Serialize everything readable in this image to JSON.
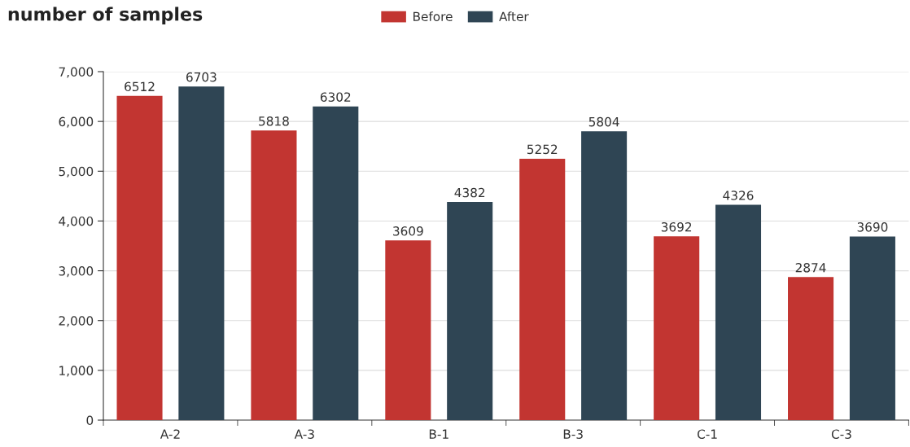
{
  "chart_data": {
    "type": "bar",
    "title": "number of samples",
    "categories": [
      "A-2",
      "A-3",
      "B-1",
      "B-3",
      "C-1",
      "C-3"
    ],
    "series": [
      {
        "name": "Before",
        "color": "#c23531",
        "values": [
          6512,
          5818,
          3609,
          5252,
          3692,
          2874
        ]
      },
      {
        "name": "After",
        "color": "#2f4554",
        "values": [
          6703,
          6302,
          4382,
          5804,
          4326,
          3690
        ]
      }
    ],
    "ylim": [
      0,
      7000
    ],
    "yticks": [
      {
        "value": 0,
        "label": "0"
      },
      {
        "value": 1000,
        "label": "1,000"
      },
      {
        "value": 2000,
        "label": "2,000"
      },
      {
        "value": 3000,
        "label": "3,000"
      },
      {
        "value": 4000,
        "label": "4,000"
      },
      {
        "value": 5000,
        "label": "5,000"
      },
      {
        "value": 6000,
        "label": "6,000"
      },
      {
        "value": 7000,
        "label": "7,000"
      }
    ],
    "grid": "y",
    "legend": "top",
    "data_labels": true
  }
}
